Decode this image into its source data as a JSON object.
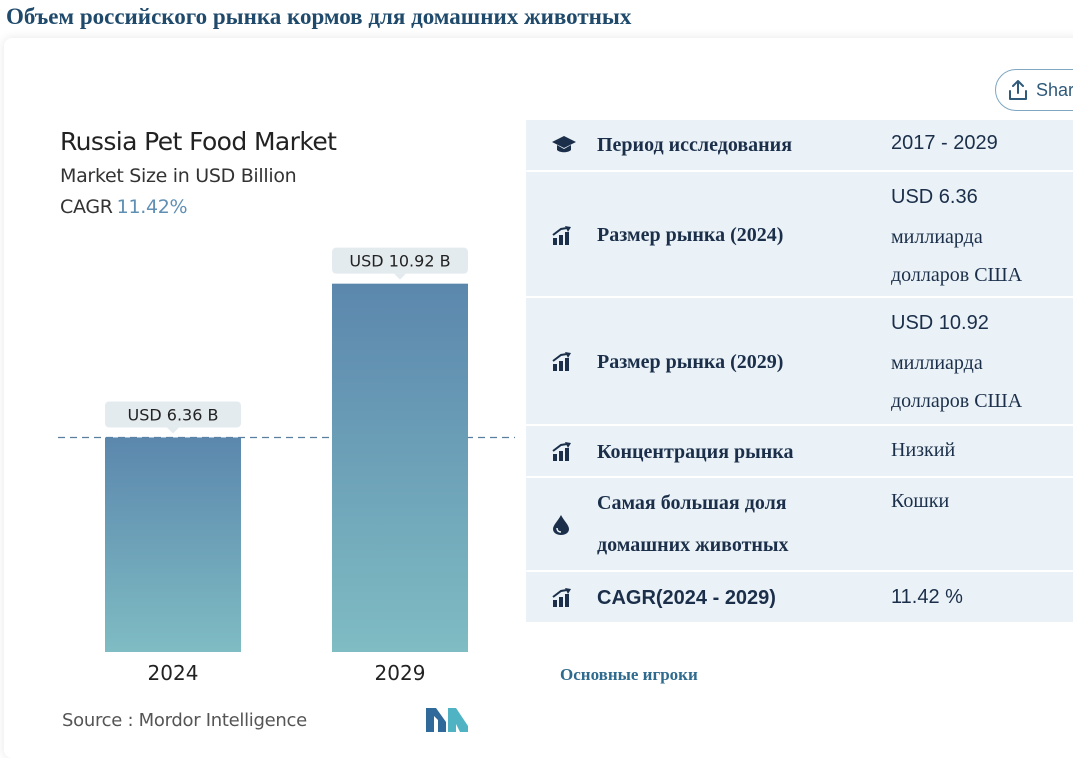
{
  "page_title": "Объем российского рынка кормов для домашних животных",
  "share_label": "Shar",
  "chart": {
    "title": "Russia Pet Food Market",
    "subtitle": "Market Size in USD Billion",
    "cagr_label": "CAGR",
    "cagr_value": "11.42%",
    "source": "Source :  Mordor Intelligence"
  },
  "chart_data": {
    "type": "bar",
    "title": "Russia Pet Food Market",
    "ylabel": "Market Size in USD Billion",
    "categories": [
      "2024",
      "2029"
    ],
    "values": [
      6.36,
      10.92
    ],
    "data_labels": [
      "USD 6.36 B",
      "USD 10.92 B"
    ],
    "reference_line": 6.36,
    "colors": {
      "bar_top": "#5b87ad",
      "bar_bottom": "#7fbcc3",
      "label_bg": "#e4ebef",
      "ref_line": "#5a7f9e"
    }
  },
  "table": {
    "rows": [
      {
        "icon": "graduation-cap-icon",
        "label": "Период исследования",
        "value": [
          "2017 - 2029"
        ]
      },
      {
        "icon": "growth-chart-icon",
        "label": "Размер рынка (2024)",
        "value": [
          "USD 6.36",
          "миллиарда",
          "долларов США"
        ]
      },
      {
        "icon": "growth-chart-icon",
        "label": "Размер рынка (2029)",
        "value": [
          "USD 10.92",
          "миллиарда",
          "долларов США"
        ]
      },
      {
        "icon": "growth-chart-icon",
        "label": "Концентрация рынка",
        "value": [
          "Низкий"
        ]
      },
      {
        "icon": "drop-icon",
        "label": [
          "Самая большая доля",
          "домашних животных"
        ],
        "value": [
          "Кошки"
        ]
      },
      {
        "icon": "growth-chart-icon",
        "label": "CAGR(2024 - 2029)",
        "value": [
          "11.42 %"
        ]
      }
    ]
  },
  "key_players_label": "Основные игроки"
}
